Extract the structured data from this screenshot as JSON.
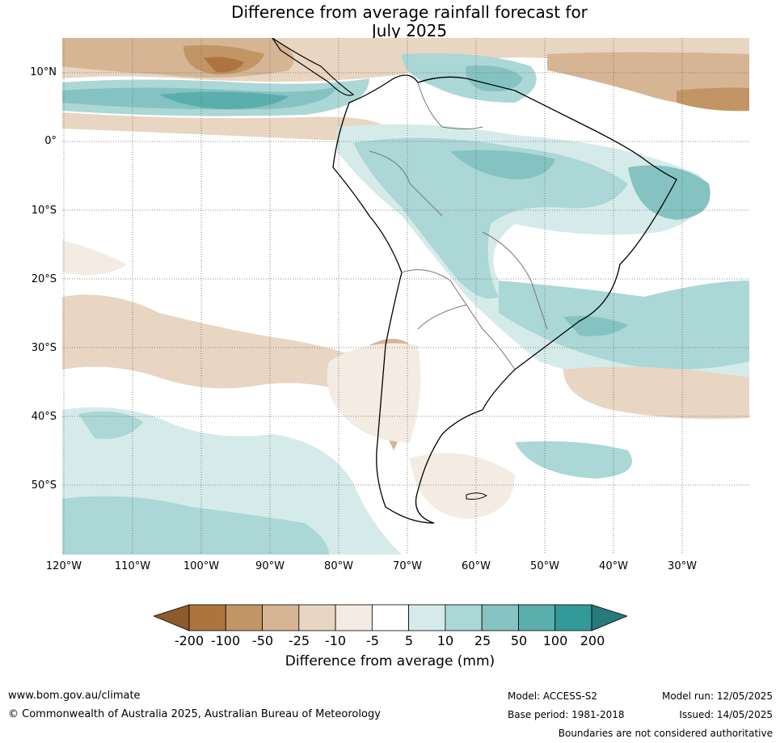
{
  "title": {
    "line1": "Difference from average rainfall forecast for",
    "line2": "July 2025"
  },
  "map": {
    "lat_labels": [
      "10°N",
      "0°",
      "10°S",
      "20°S",
      "30°S",
      "40°S",
      "50°S"
    ],
    "lon_labels": [
      "120°W",
      "110°W",
      "100°W",
      "90°W",
      "80°W",
      "70°W",
      "60°W",
      "50°W",
      "40°W",
      "30°W"
    ]
  },
  "legend": {
    "title": "Difference from average (mm)",
    "ticks": [
      "-200",
      "-100",
      "-50",
      "-25",
      "-10",
      "-5",
      "5",
      "10",
      "25",
      "50",
      "100",
      "200"
    ],
    "colors": {
      "below_min": "#8c5a2b",
      "bins": [
        "#ae7440",
        "#c29565",
        "#d6b595",
        "#e8d5c2",
        "#f4ebe3",
        "#ffffff",
        "#d5ebea",
        "#abd7d6",
        "#84c3c1",
        "#5aaeac",
        "#329a98"
      ],
      "above_max": "#277a79"
    }
  },
  "footer": {
    "url": "www.bom.gov.au/climate",
    "copyright": "© Commonwealth of Australia 2025, Australian Bureau of Meteorology",
    "model": "Model: ACCESS-S2",
    "base_period": "Base period: 1981-2018",
    "model_run": "Model run: 12/05/2025",
    "issued": "Issued: 14/05/2025",
    "disclaimer": "Boundaries are not considered authoritative"
  }
}
